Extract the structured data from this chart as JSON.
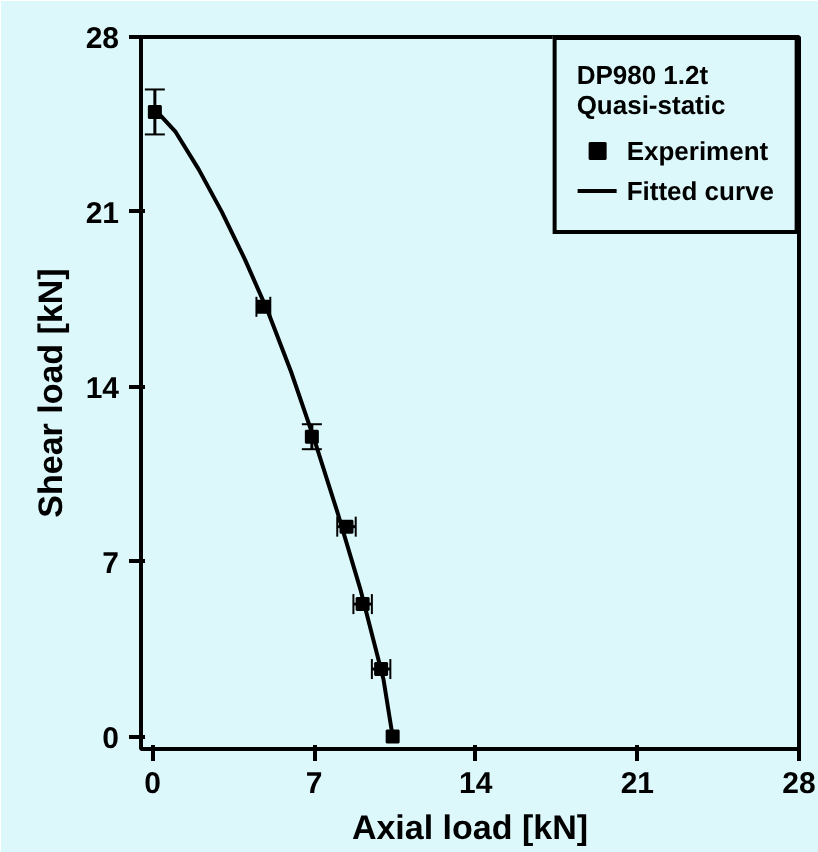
{
  "chart_data": {
    "type": "scatter",
    "xlabel": "Axial load [kN]",
    "ylabel": "Shear load [kN]",
    "legend_title": "DP980 1.2t\nQuasi-static",
    "series": [
      {
        "name": "Experiment",
        "color": "#000000",
        "marker": "square",
        "x": [
          0.1,
          4.8,
          6.9,
          8.4,
          9.1,
          9.9,
          10.4
        ],
        "values": [
          25.0,
          17.2,
          12.0,
          8.4,
          5.3,
          2.7,
          0.0
        ],
        "errors": [
          0.9,
          null,
          0.5,
          null,
          null,
          null,
          null
        ],
        "xerrors": [
          null,
          0.3,
          null,
          0.4,
          0.4,
          0.4,
          null
        ]
      },
      {
        "name": "Fitted curve",
        "type": "line",
        "color": "#000000",
        "line_style": "solid",
        "x": [
          0.0,
          1.0,
          2.0,
          3.0,
          4.0,
          5.0,
          6.0,
          7.0,
          8.0,
          9.0,
          10.0,
          10.4
        ],
        "values": [
          25.2,
          24.2,
          22.7,
          21.0,
          19.1,
          17.0,
          14.6,
          11.9,
          9.0,
          5.9,
          2.3,
          0.0
        ]
      }
    ],
    "xlim": [
      -0.5,
      28
    ],
    "ylim": [
      -0.5,
      28
    ],
    "xticks": [
      0,
      7,
      14,
      21,
      28
    ],
    "yticks": [
      0,
      7,
      14,
      21,
      28
    ],
    "grid": false,
    "legend": "top right"
  }
}
